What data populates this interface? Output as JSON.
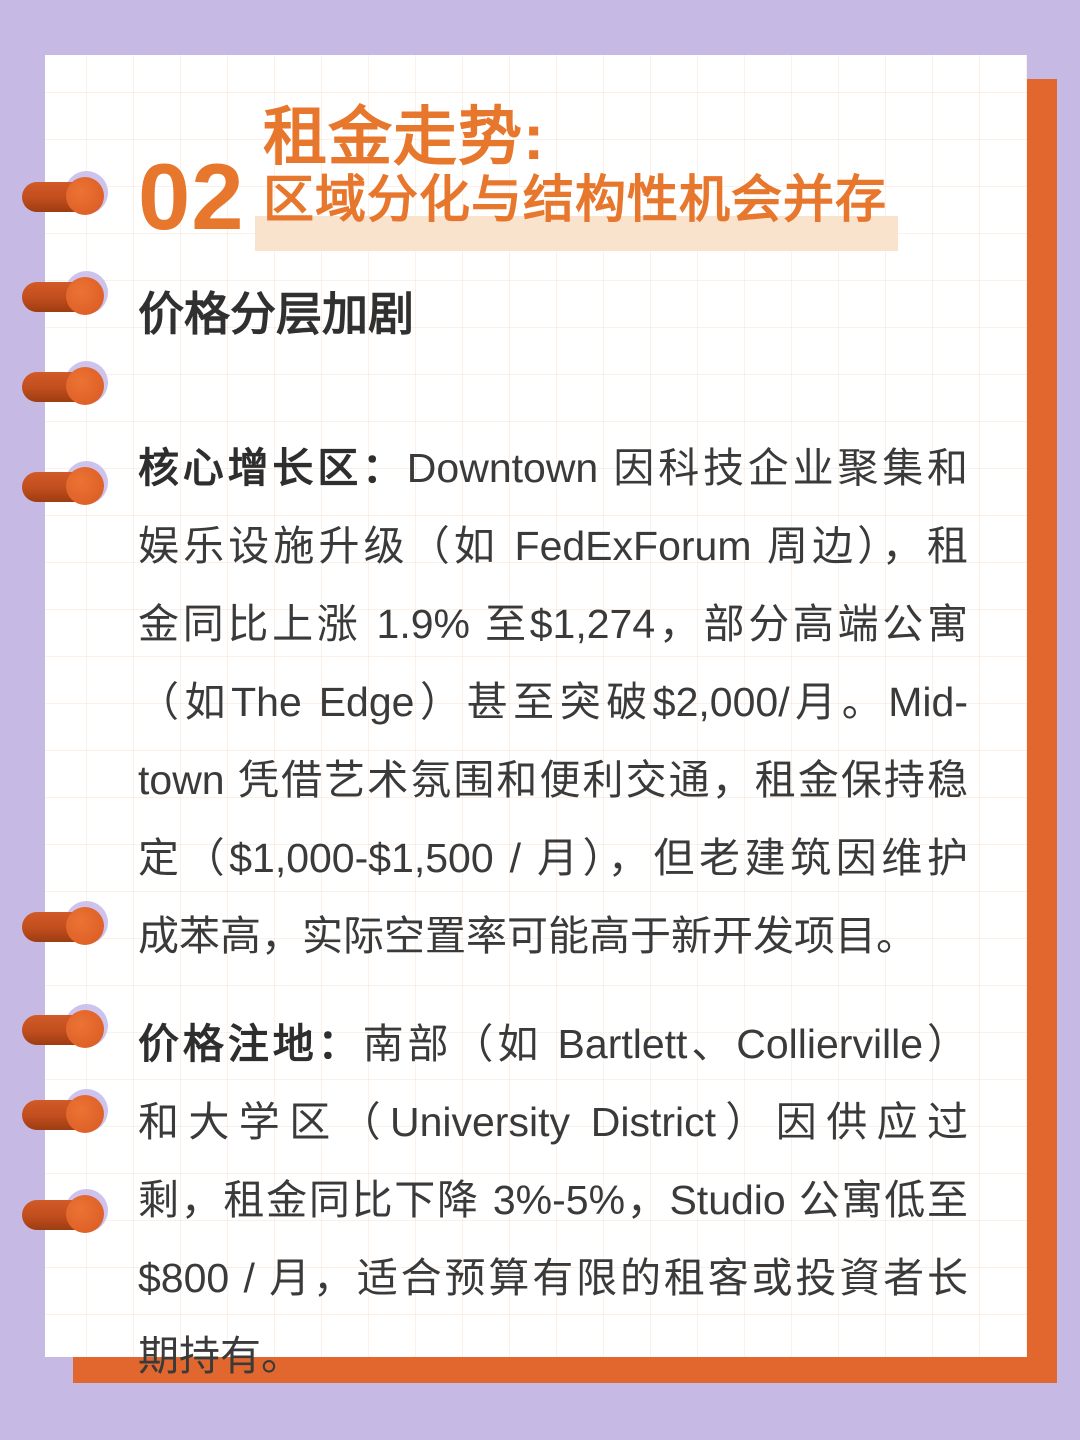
{
  "page": {
    "background_color": "#c6bae5",
    "card_color": "#ffffff",
    "accent_orange": "#e8772e",
    "shadow_orange": "#e2672f",
    "highlight_band_color": "#fae3cd",
    "pin_color": "#c24e1e",
    "body_text_color": "#3a3a3a"
  },
  "header": {
    "section_number": "02",
    "title_line1": "租金走势:",
    "title_line2": "区域分化与结构性机会并存"
  },
  "subtitle": "价格分层加剧",
  "paragraphs": [
    {
      "lead": "核心增长区：",
      "lines": [
        "Downtown 因科技企业聚集和",
        "娱乐设施升级（如 FedExForum 周边），租",
        "金同比上涨 1.9% 至$1,274，部分高端公寓",
        "（如The Edge）甚至突破$2,000/月。Mid-",
        "town 凭借艺术氛围和便利交通，租金保持稳",
        "定（$1,000-$1,500 / 月），但老建筑因维护",
        "成苯高，实际空置率可能高于新开发项目。"
      ]
    },
    {
      "lead": "价格注地：",
      "lines": [
        "南部（如 Bartlett、Collierville）",
        "和大学区（University District）因供应过",
        "剩，租金同比下降 3%-5%，Studio 公寓低至",
        "$800 / 月，适合预算有限的租客或投資者长",
        "期持有。"
      ]
    }
  ],
  "decorations": {
    "binder_pin_count": 8
  }
}
